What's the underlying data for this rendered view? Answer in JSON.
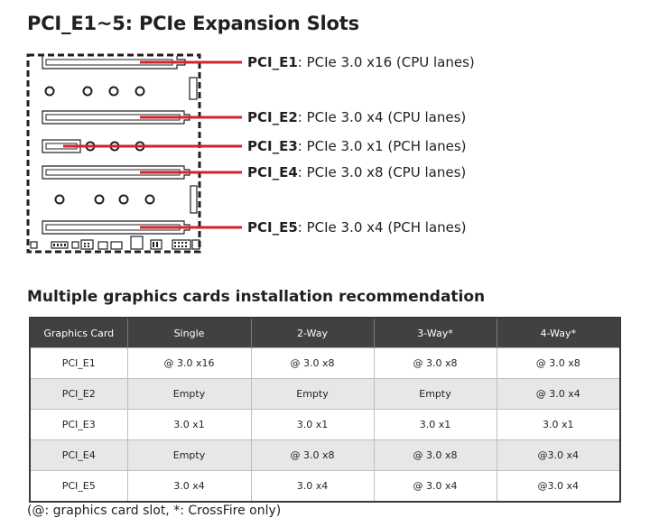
{
  "title": "PCI_E1~5: PCIe Expansion Slots",
  "slots": [
    {
      "name": "PCI_E1",
      "desc": ": PCIe 3.0 x16 (CPU lanes)"
    },
    {
      "name": "PCI_E2",
      "desc": ": PCIe 3.0 x4 (CPU lanes)"
    },
    {
      "name": "PCI_E3",
      "desc": ": PCIe 3.0 x1 (PCH lanes)"
    },
    {
      "name": "PCI_E4",
      "desc": ": PCIe 3.0 x8 (CPU lanes)"
    },
    {
      "name": "PCI_E5",
      "desc": ": PCIe 3.0 x4 (PCH lanes)"
    }
  ],
  "colors": {
    "accent": "#d2232a",
    "header_bg": "#414042",
    "row_shade": "#e6e7e8"
  },
  "table_title": "Multiple graphics cards installation recommendation",
  "table": {
    "headers": [
      "Graphics Card",
      "Single",
      "2-Way",
      "3-Way*",
      "4-Way*"
    ],
    "rows": [
      [
        "PCI_E1",
        "@ 3.0 x16",
        "@ 3.0 x8",
        "@ 3.0 x8",
        "@ 3.0 x8"
      ],
      [
        "PCI_E2",
        "Empty",
        "Empty",
        "Empty",
        "@ 3.0 x4"
      ],
      [
        "PCI_E3",
        "3.0 x1",
        "3.0 x1",
        "3.0 x1",
        "3.0 x1"
      ],
      [
        "PCI_E4",
        "Empty",
        "@ 3.0 x8",
        "@ 3.0 x8",
        "@3.0 x4"
      ],
      [
        "PCI_E5",
        "3.0 x4",
        "3.0 x4",
        "@ 3.0 x4",
        "@3.0 x4"
      ]
    ]
  },
  "footnote": "(@: graphics card slot, *: CrossFire only)"
}
